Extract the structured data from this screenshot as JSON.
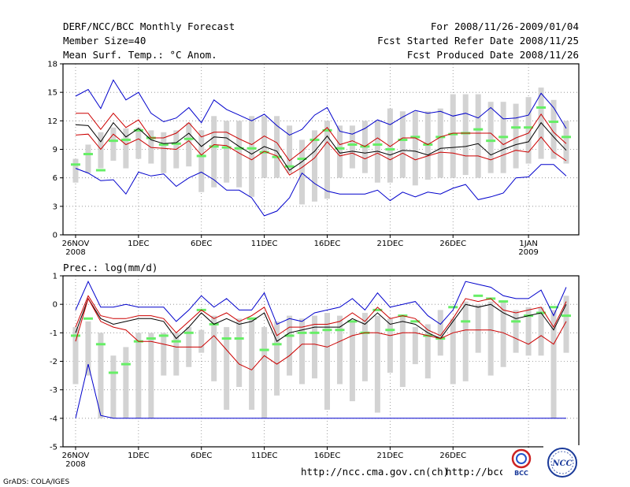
{
  "header": {
    "title": "DERF/NCC/BCC Monthly Forecast",
    "member_size": "Member Size=40",
    "variable": "Mean Surf. Temp.: °C Anom.",
    "period": "For 2008/11/26-2009/01/04",
    "started": "Fcst Started Refer Date 2008/11/25",
    "produced": "Fcst Produced Date 2008/11/26"
  },
  "footer": {
    "credit": "GrADS: COLA/IGES",
    "url1": "http://ncc.cma.gov.cn(ch)",
    "url2": "http://bcc.c",
    "logo_bcc": "BCC",
    "logo_ncc": "NCC"
  },
  "colors": {
    "box": "#d3d3d3",
    "median": "#66ee66",
    "mean": "#000000",
    "inner": "#cc0000",
    "outer": "#0000cc",
    "grid": "#888888"
  },
  "chart_data": [
    {
      "type": "line",
      "title": "Mean Surf. Temp.: °C Anom.",
      "xlabel": "",
      "ylabel": "",
      "ylim": [
        0,
        18
      ],
      "yticks": [
        0,
        3,
        6,
        9,
        12,
        15,
        18
      ],
      "x": [
        1,
        2,
        3,
        4,
        5,
        6,
        7,
        8,
        9,
        10,
        11,
        12,
        13,
        14,
        15,
        16,
        17,
        18,
        19,
        20,
        21,
        22,
        23,
        24,
        25,
        26,
        27,
        28,
        29,
        30,
        31,
        32,
        33,
        34,
        35,
        36,
        37,
        38,
        39,
        40
      ],
      "xticks": [
        {
          "x": 1,
          "label": "26NOV",
          "sub": "2008"
        },
        {
          "x": 6,
          "label": "1DEC",
          "sub": ""
        },
        {
          "x": 11,
          "label": "6DEC",
          "sub": ""
        },
        {
          "x": 16,
          "label": "11DEC",
          "sub": ""
        },
        {
          "x": 21,
          "label": "16DEC",
          "sub": ""
        },
        {
          "x": 26,
          "label": "21DEC",
          "sub": ""
        },
        {
          "x": 31,
          "label": "26DEC",
          "sub": ""
        },
        {
          "x": 37,
          "label": "1JAN",
          "sub": "2009"
        }
      ],
      "box_low": [
        5.5,
        6.5,
        7.0,
        7.8,
        7.0,
        8.0,
        7.5,
        6.5,
        7.0,
        7.2,
        4.5,
        5.0,
        5.5,
        5.0,
        4.0,
        6.0,
        6.0,
        6.5,
        3.2,
        3.5,
        3.8,
        6.0,
        7.0,
        6.5,
        5.5,
        5.5,
        6.0,
        5.2,
        5.8,
        6.0,
        6.0,
        6.3,
        6.0,
        6.5,
        6.5,
        7.0,
        7.5,
        8.0,
        8.0,
        7.5
      ],
      "box_high": [
        8.0,
        9.5,
        10.8,
        11.3,
        11.2,
        11.3,
        11.0,
        10.8,
        11.0,
        11.8,
        11.0,
        12.5,
        12.0,
        12.0,
        12.5,
        12.5,
        12.5,
        11.5,
        10.0,
        11.0,
        12.0,
        11.5,
        11.5,
        12.0,
        12.0,
        13.3,
        13.0,
        13.0,
        13.0,
        13.3,
        14.8,
        14.8,
        14.8,
        14.0,
        14.0,
        13.8,
        14.5,
        15.5,
        14.2,
        12.0
      ],
      "series": [
        {
          "name": "Maximum",
          "color": "#0000cc",
          "values": [
            14.6,
            15.3,
            13.3,
            16.3,
            14.2,
            15.0,
            12.8,
            11.9,
            12.3,
            13.4,
            11.8,
            14.2,
            13.2,
            12.6,
            12.0,
            12.7,
            11.5,
            10.5,
            11.1,
            12.6,
            13.4,
            10.9,
            10.6,
            11.2,
            12.1,
            11.6,
            12.4,
            13.1,
            12.8,
            13.0,
            12.5,
            12.8,
            12.3,
            13.4,
            12.2,
            12.3,
            12.6,
            14.9,
            13.4,
            11.2
          ]
        },
        {
          "name": "Upper",
          "color": "#cc0000",
          "values": [
            12.8,
            12.8,
            11.1,
            12.8,
            11.3,
            12.1,
            10.2,
            10.2,
            10.7,
            11.8,
            10.3,
            10.8,
            10.8,
            10.1,
            9.5,
            10.4,
            9.7,
            7.8,
            8.8,
            10.1,
            11.3,
            9.5,
            9.9,
            9.3,
            10.2,
            9.3,
            10.2,
            10.2,
            9.5,
            10.3,
            10.7,
            10.7,
            10.7,
            10.7,
            9.5,
            10.2,
            10.7,
            12.7,
            10.8,
            9.6
          ]
        },
        {
          "name": "Mean",
          "color": "#000000",
          "values": [
            11.6,
            11.5,
            9.8,
            11.8,
            10.3,
            11.2,
            10.0,
            9.6,
            9.7,
            10.7,
            9.3,
            10.3,
            10.2,
            9.3,
            8.5,
            9.3,
            8.8,
            6.8,
            7.7,
            8.8,
            10.4,
            8.6,
            8.8,
            8.6,
            8.8,
            8.4,
            8.9,
            8.8,
            8.4,
            9.1,
            9.2,
            9.3,
            9.6,
            8.4,
            9.0,
            9.5,
            9.8,
            11.8,
            10.3,
            8.9
          ]
        },
        {
          "name": "Lower",
          "color": "#cc0000",
          "values": [
            10.5,
            10.6,
            9.0,
            10.6,
            9.5,
            10.1,
            9.2,
            9.1,
            9.0,
            9.9,
            8.4,
            9.5,
            9.4,
            8.6,
            7.9,
            8.8,
            8.3,
            6.3,
            7.1,
            8.1,
            9.8,
            8.3,
            8.6,
            8.0,
            8.6,
            7.9,
            8.6,
            7.9,
            8.3,
            8.7,
            8.6,
            8.3,
            8.3,
            7.9,
            8.4,
            8.9,
            8.7,
            10.3,
            8.7,
            7.8
          ]
        },
        {
          "name": "Minimum",
          "color": "#0000cc",
          "values": [
            7.0,
            6.5,
            5.7,
            5.8,
            4.3,
            6.6,
            6.2,
            6.4,
            5.1,
            6.0,
            6.6,
            5.8,
            4.7,
            4.7,
            3.9,
            2.0,
            2.5,
            3.9,
            6.5,
            5.4,
            4.6,
            4.3,
            4.3,
            4.3,
            4.7,
            3.6,
            4.5,
            4.0,
            4.5,
            4.3,
            4.9,
            5.3,
            3.7,
            4.0,
            4.4,
            6.0,
            6.1,
            7.4,
            7.4,
            6.2
          ]
        }
      ],
      "median_bars": [
        7.4,
        8.5,
        6.8,
        9.9,
        10.0,
        11.0,
        10.2,
        9.5,
        9.6,
        10.1,
        8.3,
        9.3,
        9.2,
        9.1,
        9.1,
        8.7,
        8.2,
        7.2,
        8.0,
        10.0,
        11.0,
        9.1,
        9.5,
        9.3,
        9.5,
        9.0,
        10.0,
        10.3,
        9.5,
        10.3,
        10.6,
        10.7,
        11.1,
        9.9,
        10.3,
        11.3,
        11.3,
        13.4,
        11.9,
        10.3
      ]
    },
    {
      "type": "line",
      "title": "Prec.: log(mm/d)",
      "xlabel": "",
      "ylabel": "",
      "ylim": [
        -5,
        1
      ],
      "yticks": [
        -5,
        -4,
        -3,
        -2,
        -1,
        0,
        1
      ],
      "x": [
        1,
        2,
        3,
        4,
        5,
        6,
        7,
        8,
        9,
        10,
        11,
        12,
        13,
        14,
        15,
        16,
        17,
        18,
        19,
        20,
        21,
        22,
        23,
        24,
        25,
        26,
        27,
        28,
        29,
        30,
        31,
        32,
        33,
        34,
        35,
        36,
        37,
        38,
        39,
        40
      ],
      "xticks": [
        {
          "x": 1,
          "label": "26NOV",
          "sub": "2008"
        },
        {
          "x": 6,
          "label": "1DEC",
          "sub": ""
        },
        {
          "x": 11,
          "label": "6DEC",
          "sub": ""
        },
        {
          "x": 16,
          "label": "11DEC",
          "sub": ""
        },
        {
          "x": 21,
          "label": "16DEC",
          "sub": ""
        },
        {
          "x": 26,
          "label": "21DEC",
          "sub": ""
        },
        {
          "x": 31,
          "label": "26DEC",
          "sub": ""
        },
        {
          "x": 37,
          "label": "1JAN",
          "sub": "2009"
        }
      ],
      "box_low": [
        -2.8,
        -2.5,
        -4.0,
        -4.0,
        -4.0,
        -4.0,
        -4.0,
        -2.5,
        -2.5,
        -2.2,
        -1.7,
        -2.7,
        -3.7,
        -2.9,
        -3.7,
        -4.0,
        -3.2,
        -2.5,
        -2.8,
        -2.6,
        -3.7,
        -2.8,
        -3.4,
        -2.7,
        -3.8,
        -2.4,
        -2.9,
        -2.1,
        -2.6,
        -1.8,
        -2.8,
        -2.7,
        -1.7,
        -2.5,
        -2.2,
        -1.7,
        -1.8,
        -1.8,
        -4.0,
        -1.7
      ],
      "box_high": [
        -0.8,
        -0.6,
        -1.0,
        -1.8,
        -1.5,
        -1.0,
        -1.0,
        -1.0,
        -1.0,
        -0.8,
        -0.9,
        -0.4,
        -0.8,
        -0.5,
        -0.5,
        -0.8,
        -0.6,
        -0.4,
        -0.5,
        -0.4,
        -0.3,
        -0.4,
        -0.6,
        -0.3,
        -0.4,
        -0.5,
        -0.4,
        -0.8,
        -0.7,
        -0.2,
        -0.5,
        0.1,
        0.0,
        0.1,
        0.1,
        -0.2,
        -0.1,
        -0.1,
        -0.2,
        0.3
      ],
      "series": [
        {
          "name": "Maximum",
          "color": "#0000cc",
          "values": [
            -0.2,
            0.8,
            -0.1,
            -0.1,
            0.0,
            -0.1,
            -0.1,
            -0.1,
            -0.6,
            -0.2,
            0.3,
            -0.1,
            0.2,
            -0.2,
            -0.2,
            0.4,
            -0.7,
            -0.5,
            -0.6,
            -0.3,
            -0.2,
            -0.1,
            0.2,
            -0.2,
            0.4,
            -0.1,
            0.0,
            0.1,
            -0.4,
            -0.7,
            -0.2,
            0.8,
            0.7,
            0.6,
            0.3,
            0.2,
            0.2,
            0.5,
            -0.4,
            0.6
          ]
        },
        {
          "name": "Upper",
          "color": "#cc0000",
          "values": [
            -0.8,
            0.3,
            -0.4,
            -0.5,
            -0.5,
            -0.4,
            -0.4,
            -0.5,
            -1.0,
            -0.6,
            -0.2,
            -0.5,
            -0.3,
            -0.6,
            -0.4,
            -0.1,
            -1.1,
            -0.8,
            -0.8,
            -0.7,
            -0.7,
            -0.6,
            -0.3,
            -0.6,
            -0.1,
            -0.5,
            -0.4,
            -0.5,
            -0.9,
            -1.1,
            -0.5,
            0.2,
            0.1,
            0.2,
            -0.2,
            -0.3,
            -0.2,
            -0.1,
            -0.8,
            0.1
          ]
        },
        {
          "name": "Mean",
          "color": "#000000",
          "values": [
            -1.0,
            0.2,
            -0.5,
            -0.7,
            -0.6,
            -0.5,
            -0.5,
            -0.6,
            -1.2,
            -0.8,
            -0.3,
            -0.7,
            -0.5,
            -0.7,
            -0.6,
            -0.3,
            -1.3,
            -1.0,
            -0.9,
            -0.8,
            -0.8,
            -0.8,
            -0.5,
            -0.7,
            -0.3,
            -0.7,
            -0.6,
            -0.7,
            -1.0,
            -1.2,
            -0.6,
            0.0,
            -0.1,
            0.0,
            -0.3,
            -0.5,
            -0.4,
            -0.3,
            -0.9,
            0.0
          ]
        },
        {
          "name": "Lower",
          "color": "#cc0000",
          "values": [
            -1.3,
            0.2,
            -0.6,
            -0.8,
            -0.9,
            -1.3,
            -1.3,
            -1.4,
            -1.5,
            -1.5,
            -1.5,
            -1.1,
            -1.6,
            -2.1,
            -2.3,
            -1.8,
            -2.1,
            -1.8,
            -1.4,
            -1.4,
            -1.5,
            -1.3,
            -1.1,
            -1.0,
            -1.0,
            -1.1,
            -1.0,
            -1.0,
            -1.1,
            -1.2,
            -1.0,
            -0.9,
            -0.9,
            -0.9,
            -1.0,
            -1.2,
            -1.4,
            -1.1,
            -1.4,
            -0.6
          ]
        },
        {
          "name": "Minimum",
          "color": "#0000cc",
          "values": [
            -4.0,
            -2.1,
            -3.9,
            -4.0,
            -4.0,
            -4.0,
            -4.0,
            -4.0,
            -4.0,
            -4.0,
            -4.0,
            -4.0,
            -4.0,
            -4.0,
            -4.0,
            -4.0,
            -4.0,
            -4.0,
            -4.0,
            -4.0,
            -4.0,
            -4.0,
            -4.0,
            -4.0,
            -4.0,
            -4.0,
            -4.0,
            -4.0,
            -4.0,
            -4.0,
            -4.0,
            -4.0,
            -4.0,
            -4.0,
            -4.0,
            -4.0,
            -4.0,
            -4.0,
            -4.0,
            -4.0
          ]
        }
      ],
      "median_bars": [
        -1.1,
        -0.5,
        -1.4,
        -2.4,
        -2.1,
        -1.3,
        -1.2,
        -1.1,
        -1.3,
        -1.0,
        -0.2,
        -0.7,
        -1.2,
        -1.2,
        -0.5,
        -1.6,
        -1.4,
        -1.1,
        -1.0,
        -1.0,
        -0.9,
        -0.9,
        -0.6,
        -1.0,
        -0.2,
        -0.9,
        -0.4,
        -0.6,
        -1.1,
        -1.2,
        -0.1,
        -0.6,
        0.3,
        0.2,
        0.1,
        -0.6,
        -0.4,
        -0.3,
        -0.1,
        -0.4
      ]
    }
  ]
}
